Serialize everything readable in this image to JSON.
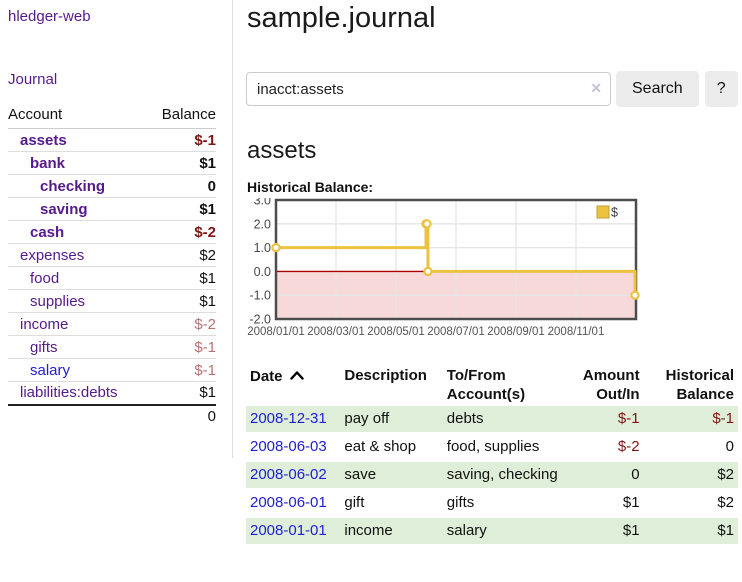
{
  "colors": {
    "link_purple": "#551a8b",
    "link_blue": "#2020d8",
    "negative_dark": "#801515",
    "negative_light": "#b87272",
    "row_stripe_green": "#dfeed8",
    "series_gold": "#edc240",
    "negative_region_pink": "#f8d9d9",
    "zero_line_red": "#aa0000",
    "button_gray": "#ececec"
  },
  "sidebar": {
    "brand": "hledger-web",
    "journal_link": "Journal",
    "accounts_table": {
      "headers": {
        "account": "Account",
        "balance": "Balance"
      },
      "rows": [
        {
          "account": "assets",
          "balance": "$-1",
          "indent": 0,
          "bold": true,
          "balance_style": "neg-dark",
          "link_color": "purple"
        },
        {
          "account": "bank",
          "balance": "$1",
          "indent": 1,
          "bold": true,
          "balance_style": "normal",
          "link_color": "purple"
        },
        {
          "account": "checking",
          "balance": "0",
          "indent": 2,
          "bold": true,
          "balance_style": "normal",
          "link_color": "purple"
        },
        {
          "account": "saving",
          "balance": "$1",
          "indent": 2,
          "bold": true,
          "balance_style": "normal",
          "link_color": "purple"
        },
        {
          "account": "cash",
          "balance": "$-2",
          "indent": 1,
          "bold": true,
          "balance_style": "neg-dark",
          "link_color": "purple"
        },
        {
          "account": "expenses",
          "balance": "$2",
          "indent": 0,
          "bold": false,
          "balance_style": "normal",
          "link_color": "purple"
        },
        {
          "account": "food",
          "balance": "$1",
          "indent": 1,
          "bold": false,
          "balance_style": "normal",
          "link_color": "purple"
        },
        {
          "account": "supplies",
          "balance": "$1",
          "indent": 1,
          "bold": false,
          "balance_style": "normal",
          "link_color": "purple"
        },
        {
          "account": "income",
          "balance": "$-2",
          "indent": 0,
          "bold": false,
          "balance_style": "neg-light",
          "link_color": "purple"
        },
        {
          "account": "gifts",
          "balance": "$-1",
          "indent": 1,
          "bold": false,
          "balance_style": "neg-light",
          "link_color": "purple"
        },
        {
          "account": "salary",
          "balance": "$-1",
          "indent": 1,
          "bold": false,
          "balance_style": "neg-light",
          "link_color": "blue"
        },
        {
          "account": "liabilities:debts",
          "balance": "$1",
          "indent": 0,
          "bold": false,
          "balance_style": "normal",
          "link_color": "purple"
        }
      ],
      "total": "0"
    }
  },
  "header": {
    "title": "sample.journal"
  },
  "search": {
    "query": "inacct:assets",
    "clear_icon": "✕",
    "search_button": "Search",
    "help_button": "?"
  },
  "account_page": {
    "title": "assets",
    "chart_label": "Historical Balance:"
  },
  "chart_data": {
    "type": "line",
    "step": true,
    "title": "Historical Balance:",
    "series": [
      {
        "name": "$",
        "color": "#edc240",
        "points": [
          {
            "date": "2008-01-01",
            "value": 1
          },
          {
            "date": "2008-06-01",
            "value": 2
          },
          {
            "date": "2008-06-02",
            "value": 2
          },
          {
            "date": "2008-06-03",
            "value": 0
          },
          {
            "date": "2008-12-31",
            "value": -1
          }
        ]
      }
    ],
    "x_ticks": [
      "2008/01/01",
      "2008/03/01",
      "2008/05/01",
      "2008/07/01",
      "2008/09/01",
      "2008/11/01"
    ],
    "y_ticks": [
      3.0,
      2.0,
      1.0,
      0.0,
      -1.0,
      -2.0
    ],
    "ylim": [
      -2,
      3
    ],
    "xlim_months": [
      0,
      12
    ],
    "grid": true,
    "legend_position": "top-right",
    "negative_region_shaded": true
  },
  "register_table": {
    "headers": [
      {
        "label": "Date",
        "sorted": "ascending",
        "align": "left"
      },
      {
        "label": "Description",
        "align": "left"
      },
      {
        "label": "To/From Account(s)",
        "align": "left"
      },
      {
        "label": "Amount Out/In",
        "align": "right"
      },
      {
        "label": "Historical Balance",
        "align": "right"
      }
    ],
    "rows": [
      {
        "date": "2008-12-31",
        "description": "pay off",
        "accounts": "debts",
        "amount": "$-1",
        "amount_negative": true,
        "balance": "$-1",
        "balance_negative": true
      },
      {
        "date": "2008-06-03",
        "description": "eat & shop",
        "accounts": "food, supplies",
        "amount": "$-2",
        "amount_negative": true,
        "balance": "0",
        "balance_negative": false
      },
      {
        "date": "2008-06-02",
        "description": "save",
        "accounts": "saving, checking",
        "amount": "0",
        "amount_negative": false,
        "balance": "$2",
        "balance_negative": false
      },
      {
        "date": "2008-06-01",
        "description": "gift",
        "accounts": "gifts",
        "amount": "$1",
        "amount_negative": false,
        "balance": "$2",
        "balance_negative": false
      },
      {
        "date": "2008-01-01",
        "description": "income",
        "accounts": "salary",
        "amount": "$1",
        "amount_negative": false,
        "balance": "$1",
        "balance_negative": false
      }
    ]
  }
}
